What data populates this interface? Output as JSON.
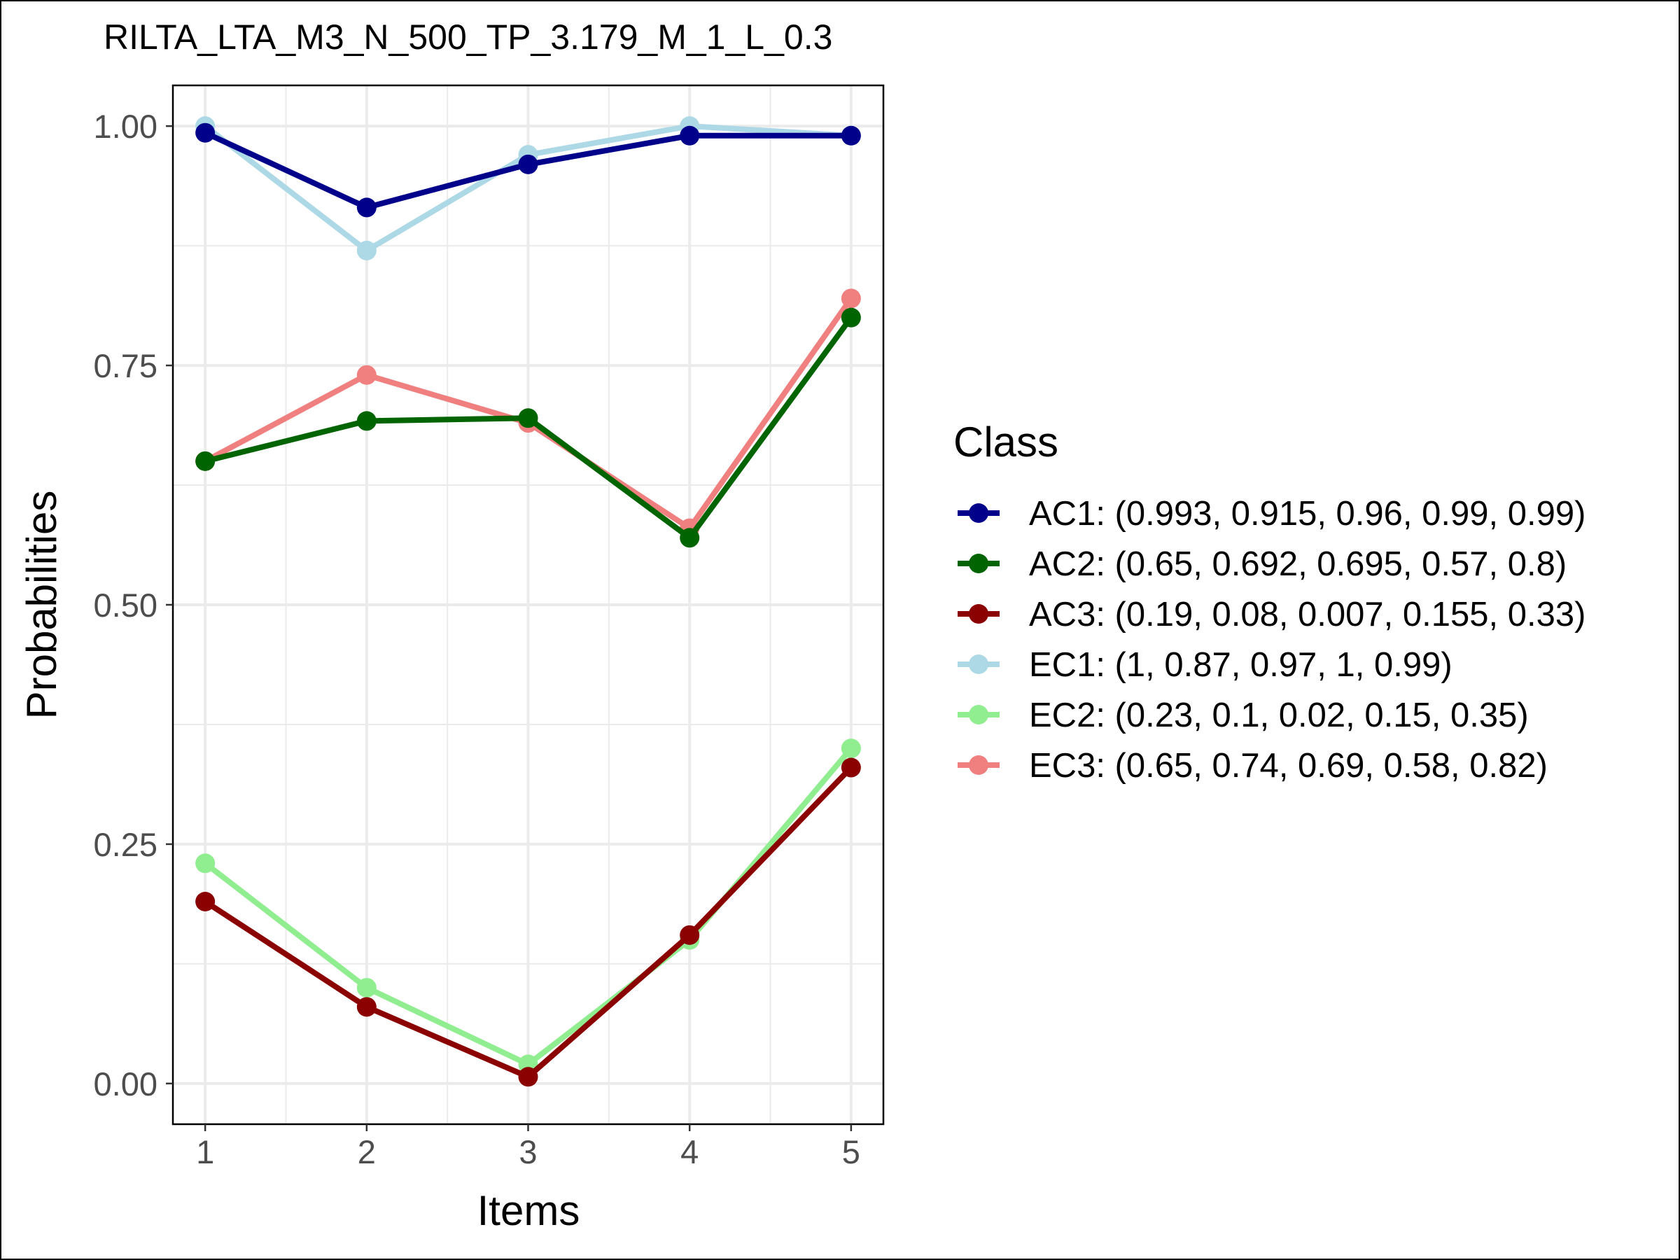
{
  "chart_data": {
    "type": "line",
    "title": "RILTA_LTA_M3_N_500_TP_3.179_M_1_L_0.3",
    "xlabel": "Items",
    "ylabel": "Probabilities",
    "x": [
      1,
      2,
      3,
      4,
      5
    ],
    "x_tick_labels": [
      "1",
      "2",
      "3",
      "4",
      "5"
    ],
    "y_tick_labels": [
      "0.00",
      "0.25",
      "0.50",
      "0.75",
      "1.00"
    ],
    "xlim": [
      0.8,
      5.2
    ],
    "ylim": [
      -0.0425,
      1.0425
    ],
    "grid": true,
    "legend": {
      "title": "Class",
      "position": "right"
    },
    "series": [
      {
        "name": "AC1: (0.993, 0.915, 0.96, 0.99, 0.99)",
        "color": "#00008B",
        "values": [
          0.993,
          0.915,
          0.96,
          0.99,
          0.99
        ]
      },
      {
        "name": "AC2: (0.65, 0.692, 0.695, 0.57, 0.8)",
        "color": "#006400",
        "values": [
          0.65,
          0.692,
          0.695,
          0.57,
          0.8
        ]
      },
      {
        "name": "AC3: (0.19, 0.08, 0.007, 0.155, 0.33)",
        "color": "#8B0000",
        "values": [
          0.19,
          0.08,
          0.007,
          0.155,
          0.33
        ]
      },
      {
        "name": "EC1: (1, 0.87, 0.97, 1, 0.99)",
        "color": "#ADD8E6",
        "values": [
          1,
          0.87,
          0.97,
          1,
          0.99
        ]
      },
      {
        "name": "EC2: (0.23, 0.1, 0.02, 0.15, 0.35)",
        "color": "#90EE90",
        "values": [
          0.23,
          0.1,
          0.02,
          0.15,
          0.35
        ]
      },
      {
        "name": "EC3: (0.65, 0.74, 0.69, 0.58, 0.82)",
        "color": "#F08080",
        "values": [
          0.65,
          0.74,
          0.69,
          0.58,
          0.82
        ]
      }
    ],
    "draw_order": [
      3,
      4,
      5,
      0,
      1,
      2
    ]
  }
}
